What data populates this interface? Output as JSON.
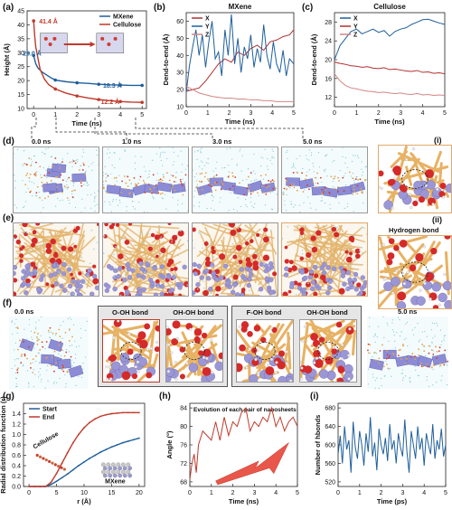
{
  "figure": {
    "panel_labels": {
      "a": "(a)",
      "b": "(b)",
      "c": "(c)",
      "d": "(d)",
      "e": "(e)",
      "f": "(f)",
      "g": "(g)",
      "h": "(h)",
      "i": "(i)",
      "zi": "(i)",
      "zii": "(ii)"
    },
    "time_labels": {
      "t0": "0.0 ns",
      "t1": "1.0 ns",
      "t3": "3.0 ns",
      "t5": "5.0 ns",
      "f0": "0.0 ns",
      "f5": "5.0 ns"
    },
    "hbond_label": "Hydrogen bond",
    "bond_labels": {
      "b1": "O-OH bond",
      "b2": "OH-OH bond",
      "b3": "F-OH bond",
      "b4": "OH-OH bond"
    },
    "colors": {
      "mxene": "#1f5f9a",
      "cellulose": "#c0392b",
      "dark_red": "#8b1a1a",
      "x_red": "#b33030",
      "y_blue": "#1f5f9a",
      "z_pink": "#d38585",
      "bg_gray": "#e3e3e3"
    }
  },
  "chart_data": [
    {
      "id": "a",
      "type": "line",
      "xlabel": "Time (ns)",
      "ylabel": "Height (Å)",
      "xlim": [
        -0.3,
        5.2
      ],
      "ylim": [
        10,
        45
      ],
      "xticks": [
        0,
        1,
        2,
        3,
        4,
        5
      ],
      "yticks": [
        10,
        15,
        20,
        25,
        30,
        35,
        40,
        45
      ],
      "legend": "top-right",
      "series": [
        {
          "name": "MXene",
          "color": "#1f5f9a",
          "x": [
            0,
            0.1,
            0.2,
            0.4,
            0.6,
            0.8,
            1,
            1.5,
            2,
            2.5,
            3,
            3.5,
            4,
            4.5,
            5
          ],
          "y": [
            29.0,
            26,
            24.5,
            23,
            22,
            21,
            20.2,
            19.6,
            19.2,
            19,
            18.7,
            18.5,
            18.4,
            18.3,
            18.3
          ]
        },
        {
          "name": "Cellulose",
          "color": "#c0392b",
          "x": [
            0,
            0.05,
            0.1,
            0.2,
            0.3,
            0.5,
            0.7,
            1,
            1.5,
            2,
            2.5,
            3,
            3.5,
            4,
            4.5,
            5
          ],
          "y": [
            41.4,
            36,
            32,
            28,
            24,
            20.5,
            18.5,
            17,
            15.5,
            14.5,
            13.8,
            13.2,
            12.8,
            12.5,
            12.3,
            12.2
          ]
        }
      ],
      "annotations": [
        "41.4 Å",
        "29.0 Å",
        "18.3 Å",
        "12.2 Å"
      ]
    },
    {
      "id": "b",
      "type": "line",
      "title": "MXene",
      "xlabel": "Time (ns)",
      "ylabel": "Dend-to-end (Å)",
      "xlim": [
        0,
        5
      ],
      "ylim": [
        10,
        65
      ],
      "xticks": [
        0,
        1,
        2,
        3,
        4,
        5
      ],
      "yticks": [
        10,
        20,
        30,
        40,
        50,
        60
      ],
      "legend": "top-left",
      "series": [
        {
          "name": "X",
          "color": "#b33030",
          "x": [
            0,
            0.3,
            0.6,
            0.9,
            1.2,
            1.5,
            1.8,
            2.1,
            2.4,
            2.7,
            3.0,
            3.3,
            3.6,
            3.9,
            4.2,
            4.5,
            4.8,
            5.0
          ],
          "y": [
            19,
            20,
            21,
            25,
            30,
            35,
            38,
            36,
            42,
            40,
            44,
            46,
            43,
            48,
            49,
            51,
            52,
            55
          ]
        },
        {
          "name": "Y",
          "color": "#1f5f9a",
          "x": [
            0,
            0.15,
            0.3,
            0.45,
            0.6,
            0.75,
            0.9,
            1.05,
            1.2,
            1.35,
            1.5,
            1.65,
            1.8,
            1.95,
            2.1,
            2.25,
            2.4,
            2.55,
            2.7,
            2.85,
            3.0,
            3.15,
            3.3,
            3.45,
            3.6,
            3.75,
            3.9,
            4.05,
            4.2,
            4.35,
            4.5,
            4.65,
            4.8,
            5.0
          ],
          "y": [
            18,
            34,
            45,
            55,
            40,
            52,
            33,
            48,
            60,
            38,
            42,
            28,
            55,
            40,
            64,
            35,
            50,
            30,
            45,
            38,
            52,
            33,
            44,
            36,
            58,
            40,
            32,
            48,
            35,
            30,
            43,
            28,
            38,
            35
          ]
        },
        {
          "name": "Z",
          "color": "#d38585",
          "x": [
            0,
            0.3,
            0.6,
            0.9,
            1.2,
            1.5,
            1.8,
            2.1,
            2.4,
            2.7,
            3.0,
            3.3,
            3.6,
            3.9,
            4.2,
            4.5,
            4.8,
            5.0
          ],
          "y": [
            22,
            20,
            18,
            17,
            16,
            15.5,
            15,
            15,
            14.5,
            14.5,
            14,
            14,
            13.5,
            13.5,
            13,
            13,
            13,
            13
          ]
        }
      ]
    },
    {
      "id": "c",
      "type": "line",
      "title": "Cellulose",
      "xlabel": "Time (ns)",
      "ylabel": "Dend-to-end (Å)",
      "xlim": [
        0,
        5
      ],
      "ylim": [
        10,
        30
      ],
      "xticks": [
        0,
        1,
        2,
        3,
        4,
        5
      ],
      "yticks": [
        12,
        16,
        20,
        24,
        28
      ],
      "legend": "top-left",
      "series": [
        {
          "name": "X",
          "color": "#1f5f9a",
          "x": [
            0,
            0.25,
            0.5,
            0.75,
            1.0,
            1.25,
            1.5,
            1.75,
            2.0,
            2.25,
            2.5,
            2.75,
            3.0,
            3.25,
            3.5,
            3.75,
            4.0,
            4.25,
            4.5,
            4.75,
            5.0
          ],
          "y": [
            20,
            23,
            24.5,
            26,
            26.5,
            25.5,
            26,
            26.5,
            25.8,
            26.2,
            25,
            26,
            26.5,
            26.8,
            27.5,
            28,
            28.5,
            28.6,
            28.2,
            27.8,
            27.5
          ]
        },
        {
          "name": "Y",
          "color": "#b33030",
          "x": [
            0,
            0.25,
            0.5,
            0.75,
            1.0,
            1.25,
            1.5,
            1.75,
            2.0,
            2.25,
            2.5,
            2.75,
            3.0,
            3.25,
            3.5,
            3.75,
            4.0,
            4.25,
            4.5,
            4.75,
            5.0
          ],
          "y": [
            19.5,
            19.2,
            19,
            18.7,
            18.6,
            18.4,
            18.5,
            18.2,
            18.1,
            18.3,
            17.9,
            18,
            17.8,
            17.6,
            17.5,
            17.7,
            17.3,
            17.4,
            17.1,
            17.2,
            17
          ]
        },
        {
          "name": "Z",
          "color": "#d38585",
          "x": [
            0,
            0.25,
            0.5,
            0.75,
            1.0,
            1.25,
            1.5,
            1.75,
            2.0,
            2.25,
            2.5,
            2.75,
            3.0,
            3.25,
            3.5,
            3.75,
            4.0,
            4.25,
            4.5,
            4.75,
            5.0
          ],
          "y": [
            17,
            15.5,
            14.5,
            14,
            13.8,
            13.5,
            13.3,
            13.2,
            13,
            13.1,
            12.9,
            12.8,
            12.9,
            12.7,
            12.6,
            12.8,
            12.5,
            12.6,
            12.4,
            12.5,
            12.4
          ]
        }
      ]
    },
    {
      "id": "g",
      "type": "line",
      "xlabel": "r (Å)",
      "ylabel": "Radial distribution function (r)",
      "xlim": [
        -1,
        21
      ],
      "ylim": [
        0,
        1.6
      ],
      "xticks": [
        0,
        5,
        10,
        15,
        20
      ],
      "yticks": [
        0.0,
        0.2,
        0.4,
        0.6,
        0.8,
        1.0,
        1.2,
        1.4
      ],
      "legend": "top-left",
      "series": [
        {
          "name": "Start",
          "color": "#1f5f9a",
          "x": [
            0,
            1,
            2,
            3,
            4,
            5,
            6,
            7,
            8,
            9,
            10,
            11,
            12,
            13,
            14,
            15,
            16,
            17,
            18,
            19,
            20
          ],
          "y": [
            0,
            0,
            0,
            0,
            0.04,
            0.1,
            0.17,
            0.24,
            0.32,
            0.4,
            0.47,
            0.54,
            0.6,
            0.66,
            0.71,
            0.76,
            0.8,
            0.84,
            0.87,
            0.9,
            0.93
          ]
        },
        {
          "name": "End",
          "color": "#c0392b",
          "x": [
            0,
            1,
            2,
            3,
            4,
            5,
            6,
            7,
            8,
            9,
            10,
            11,
            12,
            13,
            14,
            15,
            16,
            17,
            18,
            19,
            20
          ],
          "y": [
            0,
            0,
            0,
            0,
            0.08,
            0.25,
            0.45,
            0.65,
            0.84,
            1.0,
            1.13,
            1.23,
            1.3,
            1.35,
            1.38,
            1.4,
            1.41,
            1.42,
            1.42,
            1.42,
            1.42
          ]
        }
      ],
      "annotations": [
        "Cellulose",
        "MXene"
      ]
    },
    {
      "id": "h",
      "type": "line",
      "title": "Evolution of each pair of nanosheets",
      "xlabel": "Time (ns)",
      "ylabel": "Angle (°)",
      "xlim": [
        0,
        5
      ],
      "ylim": [
        67,
        85
      ],
      "xticks": [
        0,
        1,
        2,
        3,
        4,
        5
      ],
      "yticks": [
        68,
        72,
        76,
        80,
        84
      ],
      "series": [
        {
          "name": "",
          "color": "#c0392b",
          "x": [
            0,
            0.1,
            0.2,
            0.3,
            0.4,
            0.6,
            0.8,
            1.0,
            1.2,
            1.4,
            1.6,
            1.8,
            2.0,
            2.2,
            2.4,
            2.6,
            2.8,
            3.0,
            3.2,
            3.4,
            3.6,
            3.8,
            4.0,
            4.2,
            4.4,
            4.6,
            4.8,
            5.0
          ],
          "y": [
            68.5,
            72,
            74,
            70,
            76,
            79,
            78,
            77,
            81,
            77,
            82,
            78,
            81,
            80,
            83,
            84,
            79,
            81,
            80,
            82,
            81,
            84,
            80,
            82,
            79,
            81,
            82,
            80
          ]
        }
      ]
    },
    {
      "id": "i",
      "type": "line",
      "xlabel": "Time (ps)",
      "ylabel": "Number of hbonds",
      "xlim": [
        0,
        5
      ],
      "ylim": [
        510,
        690
      ],
      "xticks": [
        0,
        1,
        2,
        3,
        4,
        5
      ],
      "yticks": [
        520,
        560,
        600,
        640,
        680
      ],
      "series": [
        {
          "name": "",
          "color": "#1f5f9a",
          "x": [
            0,
            0.1,
            0.2,
            0.3,
            0.4,
            0.5,
            0.6,
            0.7,
            0.8,
            0.9,
            1.0,
            1.1,
            1.2,
            1.3,
            1.4,
            1.5,
            1.6,
            1.7,
            1.8,
            1.9,
            2.0,
            2.1,
            2.2,
            2.3,
            2.4,
            2.5,
            2.6,
            2.7,
            2.8,
            2.9,
            3.0,
            3.1,
            3.2,
            3.3,
            3.4,
            3.5,
            3.6,
            3.7,
            3.8,
            3.9,
            4.0,
            4.1,
            4.2,
            4.3,
            4.4,
            4.5,
            4.6,
            4.7,
            4.8,
            4.9,
            5.0
          ],
          "y": [
            580,
            620,
            560,
            640,
            590,
            610,
            540,
            650,
            595,
            570,
            630,
            600,
            555,
            625,
            585,
            660,
            575,
            605,
            545,
            635,
            600,
            580,
            615,
            565,
            645,
            590,
            610,
            560,
            625,
            595,
            575,
            655,
            585,
            540,
            630,
            600,
            570,
            640,
            590,
            615,
            555,
            625,
            600,
            580,
            645,
            570,
            610,
            590,
            635,
            575,
            600
          ]
        }
      ]
    }
  ]
}
